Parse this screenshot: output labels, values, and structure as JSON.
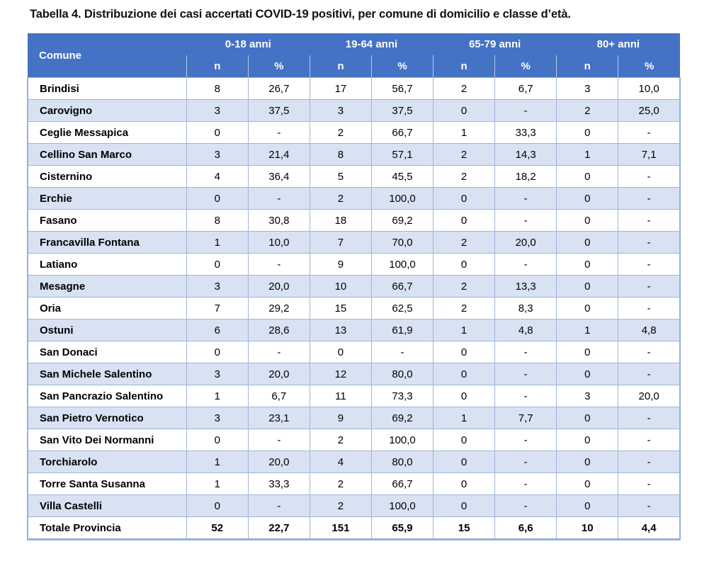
{
  "title": "Tabella 4. Distribuzione dei casi accertati COVID-19 positivi, per comune di domicilio e classe d’età.",
  "colors": {
    "header_bg": "#4472C4",
    "header_text": "#FFFFFF",
    "band_row_bg": "#D9E2F3",
    "grid_line": "#9FB4D8",
    "outer_border": "#95B3D7",
    "body_text": "#000000"
  },
  "table": {
    "corner_header": "Comune",
    "age_groups": [
      "0-18 anni",
      "19-64 anni",
      "65-79 anni",
      "80+ anni"
    ],
    "sub_headers": [
      "n",
      "%"
    ],
    "rows": [
      {
        "comune": "Brindisi",
        "values": [
          "8",
          "26,7",
          "17",
          "56,7",
          "2",
          "6,7",
          "3",
          "10,0"
        ]
      },
      {
        "comune": "Carovigno",
        "values": [
          "3",
          "37,5",
          "3",
          "37,5",
          "0",
          "-",
          "2",
          "25,0"
        ]
      },
      {
        "comune": "Ceglie Messapica",
        "values": [
          "0",
          "-",
          "2",
          "66,7",
          "1",
          "33,3",
          "0",
          "-"
        ]
      },
      {
        "comune": "Cellino San Marco",
        "values": [
          "3",
          "21,4",
          "8",
          "57,1",
          "2",
          "14,3",
          "1",
          "7,1"
        ]
      },
      {
        "comune": "Cisternino",
        "values": [
          "4",
          "36,4",
          "5",
          "45,5",
          "2",
          "18,2",
          "0",
          "-"
        ]
      },
      {
        "comune": "Erchie",
        "values": [
          "0",
          "-",
          "2",
          "100,0",
          "0",
          "-",
          "0",
          "-"
        ]
      },
      {
        "comune": "Fasano",
        "values": [
          "8",
          "30,8",
          "18",
          "69,2",
          "0",
          "-",
          "0",
          "-"
        ]
      },
      {
        "comune": "Francavilla Fontana",
        "values": [
          "1",
          "10,0",
          "7",
          "70,0",
          "2",
          "20,0",
          "0",
          "-"
        ]
      },
      {
        "comune": "Latiano",
        "values": [
          "0",
          "-",
          "9",
          "100,0",
          "0",
          "-",
          "0",
          "-"
        ]
      },
      {
        "comune": "Mesagne",
        "values": [
          "3",
          "20,0",
          "10",
          "66,7",
          "2",
          "13,3",
          "0",
          "-"
        ]
      },
      {
        "comune": "Oria",
        "values": [
          "7",
          "29,2",
          "15",
          "62,5",
          "2",
          "8,3",
          "0",
          "-"
        ]
      },
      {
        "comune": "Ostuni",
        "values": [
          "6",
          "28,6",
          "13",
          "61,9",
          "1",
          "4,8",
          "1",
          "4,8"
        ]
      },
      {
        "comune": "San Donaci",
        "values": [
          "0",
          "-",
          "0",
          "-",
          "0",
          "-",
          "0",
          "-"
        ]
      },
      {
        "comune": "San Michele Salentino",
        "values": [
          "3",
          "20,0",
          "12",
          "80,0",
          "0",
          "-",
          "0",
          "-"
        ]
      },
      {
        "comune": "San Pancrazio Salentino",
        "values": [
          "1",
          "6,7",
          "11",
          "73,3",
          "0",
          "-",
          "3",
          "20,0"
        ]
      },
      {
        "comune": "San Pietro Vernotico",
        "values": [
          "3",
          "23,1",
          "9",
          "69,2",
          "1",
          "7,7",
          "0",
          "-"
        ]
      },
      {
        "comune": "San Vito Dei Normanni",
        "values": [
          "0",
          "-",
          "2",
          "100,0",
          "0",
          "-",
          "0",
          "-"
        ]
      },
      {
        "comune": "Torchiarolo",
        "values": [
          "1",
          "20,0",
          "4",
          "80,0",
          "0",
          "-",
          "0",
          "-"
        ]
      },
      {
        "comune": "Torre Santa Susanna",
        "values": [
          "1",
          "33,3",
          "2",
          "66,7",
          "0",
          "-",
          "0",
          "-"
        ]
      },
      {
        "comune": "Villa Castelli",
        "values": [
          "0",
          "-",
          "2",
          "100,0",
          "0",
          "-",
          "0",
          "-"
        ]
      },
      {
        "comune": "Totale Provincia",
        "values": [
          "52",
          "22,7",
          "151",
          "65,9",
          "15",
          "6,6",
          "10",
          "4,4"
        ],
        "is_total": true
      }
    ]
  },
  "chart_data": {
    "type": "table",
    "title": "Tabella 4. Distribuzione dei casi accertati COVID-19 positivi, per comune di domicilio e classe d’età.",
    "columns": [
      "Comune",
      "0-18 anni n",
      "0-18 anni %",
      "19-64 anni n",
      "19-64 anni %",
      "65-79 anni n",
      "65-79 anni %",
      "80+ anni n",
      "80+ anni %"
    ],
    "totals": {
      "comune": "Totale Provincia",
      "n": [
        52,
        151,
        15,
        10
      ],
      "pct": [
        22.7,
        65.9,
        6.6,
        4.4
      ]
    }
  }
}
